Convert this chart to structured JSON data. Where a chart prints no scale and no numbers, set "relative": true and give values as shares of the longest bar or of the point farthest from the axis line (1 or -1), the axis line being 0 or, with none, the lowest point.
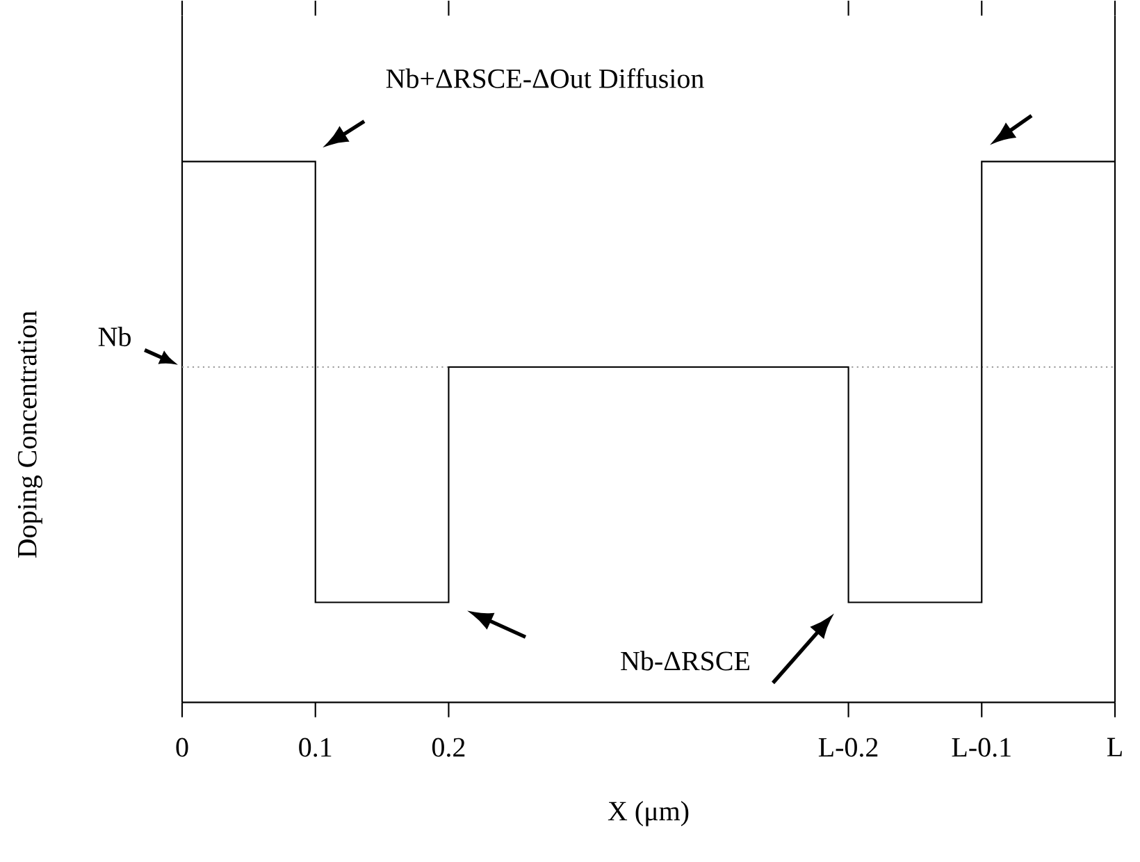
{
  "chart_data": {
    "type": "step",
    "relative": true,
    "xlabel": "X (μm)",
    "ylabel": "Doping Concentration",
    "x": [
      0,
      0.1,
      0.2,
      0.5,
      0.6,
      0.7
    ],
    "values": [
      1,
      0.185,
      0.62,
      0.185,
      1,
      1
    ],
    "color": "#000000",
    "xlim": [
      0,
      0.7
    ],
    "xticks": [
      0,
      0.1,
      0.2,
      {
        "value": 0.5,
        "label": "L-0.2"
      },
      {
        "value": 0.6,
        "label": "L-0.1"
      },
      {
        "value": 0.7,
        "label": "L"
      }
    ],
    "ref_lines": [
      {
        "axis": "y",
        "value": 0.62,
        "label": "Nb",
        "color": "#999999",
        "line_style": "dotted"
      }
    ],
    "annotations": [
      "Nb+ΔRSCE-ΔOut Diffusion",
      "Nb-ΔRSCE"
    ],
    "grid": false,
    "marker": "none",
    "line_style": "solid",
    "tick_labels": "x"
  }
}
